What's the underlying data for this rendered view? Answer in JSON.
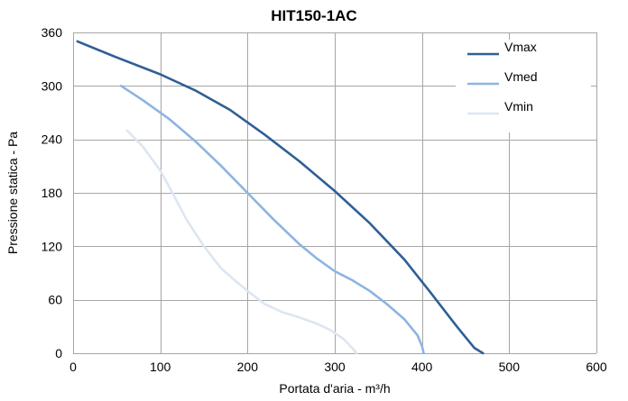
{
  "chart_data": {
    "type": "line",
    "title": "HIT150-1AC",
    "xlabel": "Portata d'aria - m³/h",
    "ylabel": "Pressione statica - Pa",
    "xlim": [
      0,
      600
    ],
    "ylim": [
      0,
      360
    ],
    "xticks": [
      0,
      100,
      200,
      300,
      400,
      500,
      600
    ],
    "yticks": [
      0,
      60,
      120,
      180,
      240,
      300,
      360
    ],
    "grid": true,
    "legend": "top-right",
    "series": [
      {
        "name": "Vmax",
        "color": "#2f5f96",
        "x": [
          5,
          50,
          100,
          140,
          180,
          220,
          260,
          300,
          340,
          380,
          410,
          440,
          460,
          470
        ],
        "y": [
          350,
          332,
          313,
          295,
          273,
          245,
          215,
          182,
          146,
          105,
          68,
          30,
          6,
          0
        ]
      },
      {
        "name": "Vmed",
        "color": "#8db4e2",
        "x": [
          55,
          80,
          110,
          140,
          170,
          200,
          230,
          260,
          280,
          300,
          320,
          340,
          360,
          380,
          395,
          400,
          402
        ],
        "y": [
          300,
          284,
          263,
          238,
          210,
          180,
          150,
          122,
          106,
          92,
          82,
          70,
          55,
          38,
          20,
          8,
          0
        ]
      },
      {
        "name": "Vmin",
        "color": "#dce6f2",
        "x": [
          62,
          80,
          100,
          115,
          130,
          150,
          170,
          190,
          200,
          220,
          240,
          260,
          280,
          295,
          310,
          320,
          325
        ],
        "y": [
          250,
          232,
          205,
          178,
          150,
          120,
          95,
          78,
          70,
          55,
          46,
          40,
          33,
          26,
          16,
          6,
          0
        ]
      }
    ]
  }
}
